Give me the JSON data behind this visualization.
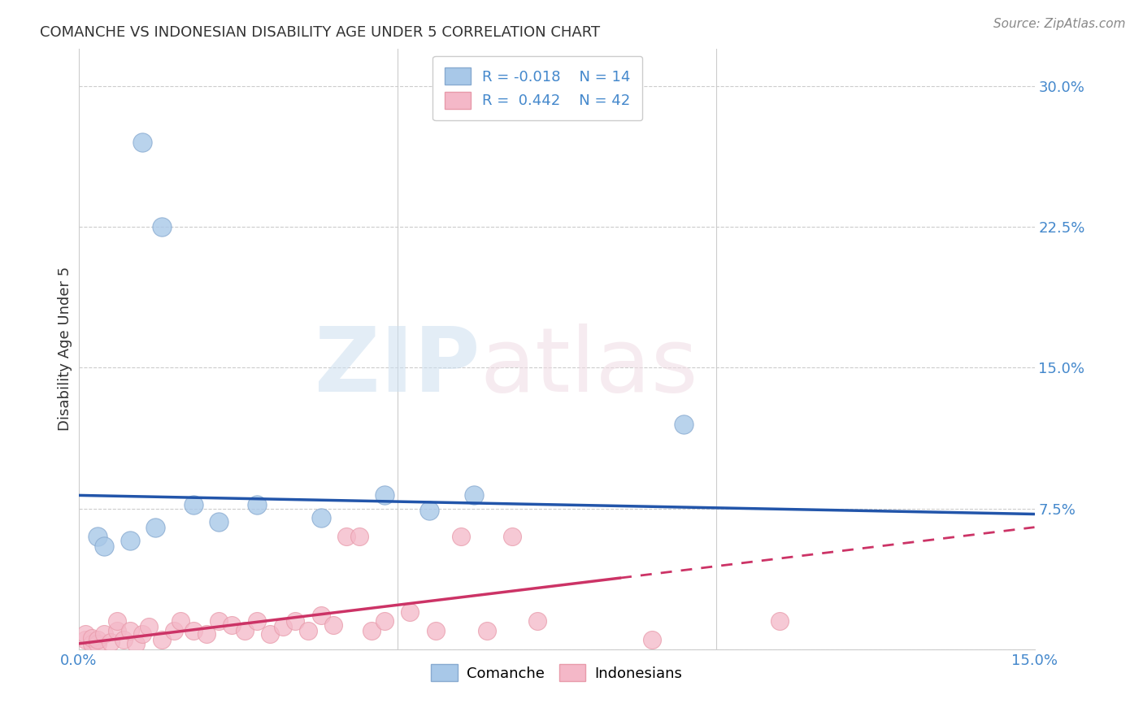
{
  "title": "COMANCHE VS INDONESIAN DISABILITY AGE UNDER 5 CORRELATION CHART",
  "source": "Source: ZipAtlas.com",
  "ylabel": "Disability Age Under 5",
  "xlim": [
    0.0,
    0.15
  ],
  "ylim": [
    0.0,
    0.32
  ],
  "xtick_positions": [
    0.0,
    0.05,
    0.1,
    0.15
  ],
  "xtick_labels": [
    "0.0%",
    "",
    "",
    "15.0%"
  ],
  "ytick_positions": [
    0.0,
    0.075,
    0.15,
    0.225,
    0.3
  ],
  "ytick_labels": [
    "",
    "7.5%",
    "15.0%",
    "22.5%",
    "30.0%"
  ],
  "comanche_color": "#a8c8e8",
  "indonesian_color": "#f4b8c8",
  "trendline_comanche_color": "#2255aa",
  "trendline_indonesian_color": "#cc3366",
  "grid_color": "#cccccc",
  "title_fontsize": 13,
  "axis_tick_color": "#4488cc",
  "comanche_x": [
    0.01,
    0.013,
    0.003,
    0.004,
    0.008,
    0.012,
    0.018,
    0.022,
    0.028,
    0.038,
    0.048,
    0.055,
    0.062,
    0.095
  ],
  "comanche_y": [
    0.27,
    0.225,
    0.06,
    0.055,
    0.058,
    0.065,
    0.077,
    0.068,
    0.077,
    0.07,
    0.082,
    0.074,
    0.082,
    0.12
  ],
  "indonesian_x": [
    0.001,
    0.001,
    0.002,
    0.002,
    0.003,
    0.003,
    0.004,
    0.005,
    0.006,
    0.006,
    0.007,
    0.008,
    0.009,
    0.01,
    0.011,
    0.013,
    0.015,
    0.016,
    0.018,
    0.02,
    0.022,
    0.024,
    0.026,
    0.028,
    0.03,
    0.032,
    0.034,
    0.036,
    0.038,
    0.04,
    0.042,
    0.044,
    0.046,
    0.048,
    0.052,
    0.056,
    0.06,
    0.064,
    0.068,
    0.072,
    0.09,
    0.11
  ],
  "indonesian_y": [
    0.005,
    0.008,
    0.003,
    0.006,
    0.003,
    0.005,
    0.008,
    0.004,
    0.01,
    0.015,
    0.005,
    0.01,
    0.003,
    0.008,
    0.012,
    0.005,
    0.01,
    0.015,
    0.01,
    0.008,
    0.015,
    0.013,
    0.01,
    0.015,
    0.008,
    0.012,
    0.015,
    0.01,
    0.018,
    0.013,
    0.06,
    0.06,
    0.01,
    0.015,
    0.02,
    0.01,
    0.06,
    0.01,
    0.06,
    0.015,
    0.005,
    0.015
  ],
  "trend_comanche_x0": 0.0,
  "trend_comanche_y0": 0.082,
  "trend_comanche_x1": 0.15,
  "trend_comanche_y1": 0.072,
  "trend_indonesian_x0": 0.0,
  "trend_indonesian_y0": 0.003,
  "trend_indonesian_x1": 0.085,
  "trend_indonesian_y1": 0.038,
  "trend_indonesian_dash_x0": 0.085,
  "trend_indonesian_dash_y0": 0.038,
  "trend_indonesian_dash_x1": 0.15,
  "trend_indonesian_dash_y1": 0.065
}
